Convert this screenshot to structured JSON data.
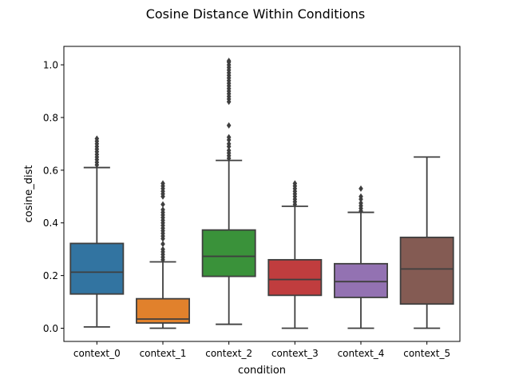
{
  "chart_data": {
    "type": "box",
    "title": "Cosine Distance Within Conditions",
    "xlabel": "condition",
    "ylabel": "cosine_dist",
    "ylim": [
      -0.05,
      1.07
    ],
    "yticks": [
      0.0,
      0.2,
      0.4,
      0.6,
      0.8,
      1.0
    ],
    "ytick_labels": [
      "0.0",
      "0.2",
      "0.4",
      "0.6",
      "0.8",
      "1.0"
    ],
    "grid": false,
    "legend": "none",
    "categories": [
      "context_0",
      "context_1",
      "context_2",
      "context_3",
      "context_4",
      "context_5"
    ],
    "series": [
      {
        "category": "context_0",
        "color": "#3274a1",
        "whisker_low": 0.005,
        "q1": 0.13,
        "median": 0.213,
        "q3": 0.322,
        "whisker_high": 0.61,
        "outliers": [
          0.62,
          0.63,
          0.64,
          0.65,
          0.66,
          0.67,
          0.68,
          0.69,
          0.7,
          0.71,
          0.72
        ]
      },
      {
        "category": "context_1",
        "color": "#e1812c",
        "whisker_low": 0.0,
        "q1": 0.02,
        "median": 0.035,
        "q3": 0.112,
        "whisker_high": 0.252,
        "outliers": [
          0.26,
          0.27,
          0.28,
          0.29,
          0.3,
          0.32,
          0.34,
          0.35,
          0.36,
          0.37,
          0.38,
          0.39,
          0.4,
          0.41,
          0.42,
          0.43,
          0.44,
          0.45,
          0.47,
          0.5,
          0.51,
          0.52,
          0.53,
          0.54,
          0.55
        ]
      },
      {
        "category": "context_2",
        "color": "#3a923a",
        "whisker_low": 0.015,
        "q1": 0.197,
        "median": 0.273,
        "q3": 0.373,
        "whisker_high": 0.637,
        "outliers": [
          0.645,
          0.655,
          0.665,
          0.675,
          0.69,
          0.7,
          0.715,
          0.725,
          0.77,
          0.86,
          0.87,
          0.88,
          0.89,
          0.9,
          0.91,
          0.92,
          0.93,
          0.94,
          0.95,
          0.96,
          0.97,
          0.98,
          0.99,
          1.0,
          1.01,
          1.015
        ]
      },
      {
        "category": "context_3",
        "color": "#c03d3e",
        "whisker_low": 0.0,
        "q1": 0.125,
        "median": 0.185,
        "q3": 0.26,
        "whisker_high": 0.463,
        "outliers": [
          0.47,
          0.48,
          0.49,
          0.5,
          0.51,
          0.52,
          0.53,
          0.54,
          0.55
        ]
      },
      {
        "category": "context_4",
        "color": "#9372b2",
        "whisker_low": 0.0,
        "q1": 0.117,
        "median": 0.177,
        "q3": 0.245,
        "whisker_high": 0.44,
        "outliers": [
          0.445,
          0.455,
          0.465,
          0.475,
          0.49,
          0.5,
          0.53
        ]
      },
      {
        "category": "context_5",
        "color": "#845b53",
        "whisker_low": 0.0,
        "q1": 0.092,
        "median": 0.225,
        "q3": 0.345,
        "whisker_high": 0.65,
        "outliers": []
      }
    ]
  }
}
